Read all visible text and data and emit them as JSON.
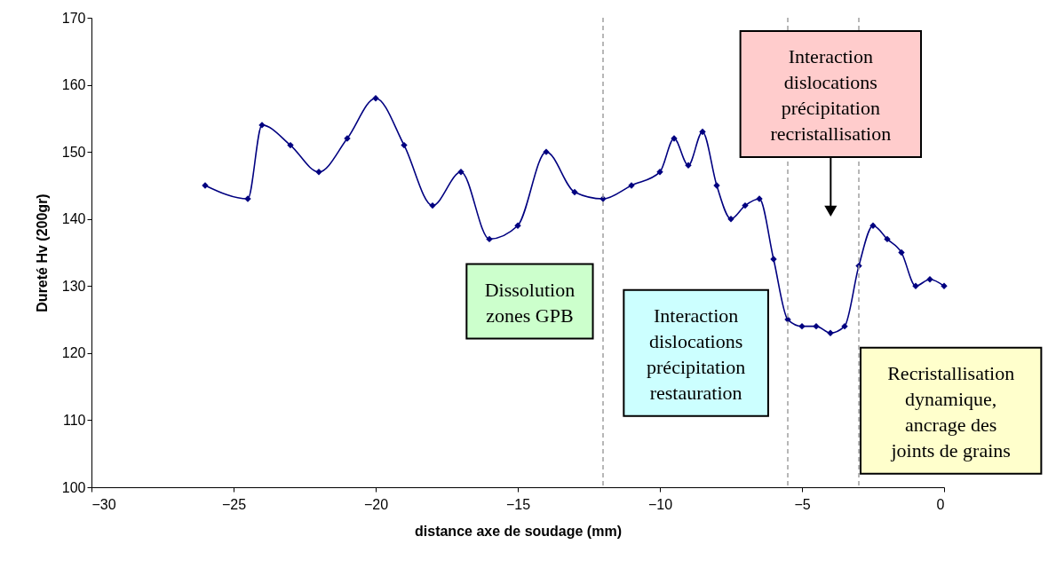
{
  "chart_data": {
    "type": "line",
    "xlabel": "distance axe de soudage (mm)",
    "ylabel": "Dureté Hv (200gr)",
    "x": [
      -26,
      -24.5,
      -24,
      -23,
      -22,
      -21,
      -20,
      -19,
      -18,
      -17,
      -16,
      -15,
      -14,
      -13,
      -12,
      -11,
      -10,
      -9.5,
      -9,
      -8.5,
      -8,
      -7.5,
      -7,
      -6.5,
      -6,
      -5.5,
      -5,
      -4.5,
      -4,
      -3.5,
      -3,
      -2.5,
      -2,
      -1.5,
      -1,
      -0.5,
      0
    ],
    "series": [
      {
        "color": "#000080",
        "values": [
          145,
          143,
          154,
          151,
          147,
          152,
          158,
          151,
          142,
          147,
          137,
          139,
          150,
          144,
          143,
          145,
          147,
          152,
          148,
          153,
          145,
          140,
          142,
          143,
          134,
          125,
          124,
          124,
          123,
          124,
          133,
          139,
          137,
          135,
          130,
          131,
          130
        ]
      }
    ],
    "xlim": [
      -30,
      0
    ],
    "xticks": [
      -30,
      -25,
      -20,
      -15,
      -10,
      -5,
      0
    ],
    "ylim": [
      100,
      170
    ],
    "yticks": [
      100,
      110,
      120,
      130,
      140,
      150,
      160,
      170
    ],
    "grid": false,
    "marker": "diamond",
    "line_style": "solid",
    "ref_lines": [
      {
        "axis": "x",
        "value": -12,
        "color": "#a0a0a0",
        "line_style": "dashed"
      },
      {
        "axis": "x",
        "value": -5.5,
        "color": "#a0a0a0",
        "line_style": "dashed"
      },
      {
        "axis": "x",
        "value": -3,
        "color": "#a0a0a0",
        "line_style": "dashed"
      }
    ],
    "annotations": [
      "Dissolution\nzones GPB",
      "Interaction\ndislocations\nprécipitation\nrestauration",
      "Interaction\ndislocations\nprécipitation\nrecristallisation",
      "Recristallisation\ndynamique,\nancrage des\njoints de grains"
    ]
  }
}
